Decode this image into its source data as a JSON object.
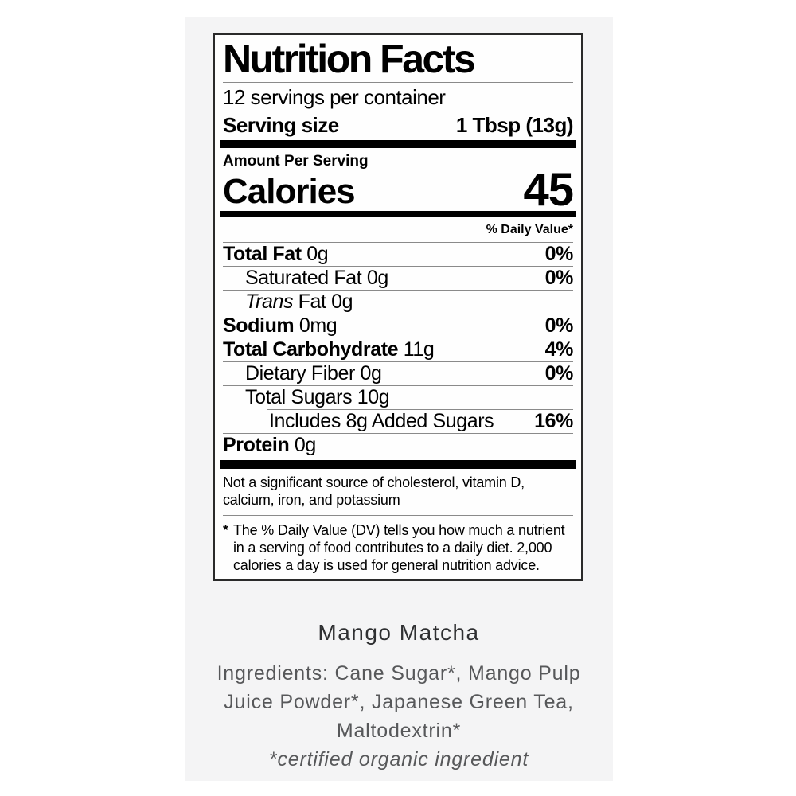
{
  "colors": {
    "card_background": "#f4f4f5",
    "label_background": "#fefefe",
    "label_border": "#2a2a2a",
    "label_text": "#000000",
    "product_text": "#57585a"
  },
  "label": {
    "title": "Nutrition Facts",
    "servings_per_container": "12 servings per container",
    "serving_size_label": "Serving size",
    "serving_size_value": "1 Tbsp (13g)",
    "amount_per_serving": "Amount Per Serving",
    "calories_label": "Calories",
    "calories_value": "45",
    "daily_value_header": "% Daily Value*",
    "rows": [
      {
        "name": "Total Fat",
        "amount": "0g",
        "dv": "0%"
      },
      {
        "name": "Saturated Fat",
        "amount": "0g",
        "dv": "0%"
      },
      {
        "name_italic": "Trans",
        "name": " Fat",
        "amount": "0g",
        "dv": ""
      },
      {
        "name": "Sodium",
        "amount": "0mg",
        "dv": "0%"
      },
      {
        "name": "Total Carbohydrate",
        "amount": "11g",
        "dv": "4%"
      },
      {
        "name": "Dietary Fiber",
        "amount": "0g",
        "dv": "0%"
      },
      {
        "name": "Total Sugars",
        "amount": "10g",
        "dv": ""
      },
      {
        "name": "Includes 8g Added Sugars",
        "amount": "",
        "dv": "16%"
      },
      {
        "name": "Protein",
        "amount": "0g",
        "dv": ""
      }
    ],
    "not_significant_note": "Not a significant source of cholesterol, vitamin D, calcium, iron, and potassium",
    "footnote_marker": "*",
    "footnote": "The % Daily Value (DV) tells you how much a nutrient in a serving of food contributes to a daily diet. 2,000 calories a day is used for general nutrition advice."
  },
  "product": {
    "name": "Mango Matcha",
    "ingredients_line1": "Ingredients: Cane Sugar*, Mango Pulp",
    "ingredients_line2": "Juice Powder*, Japanese Green Tea,",
    "ingredients_line3": "Maltodextrin*",
    "organic_note": "*certified organic ingredient"
  }
}
